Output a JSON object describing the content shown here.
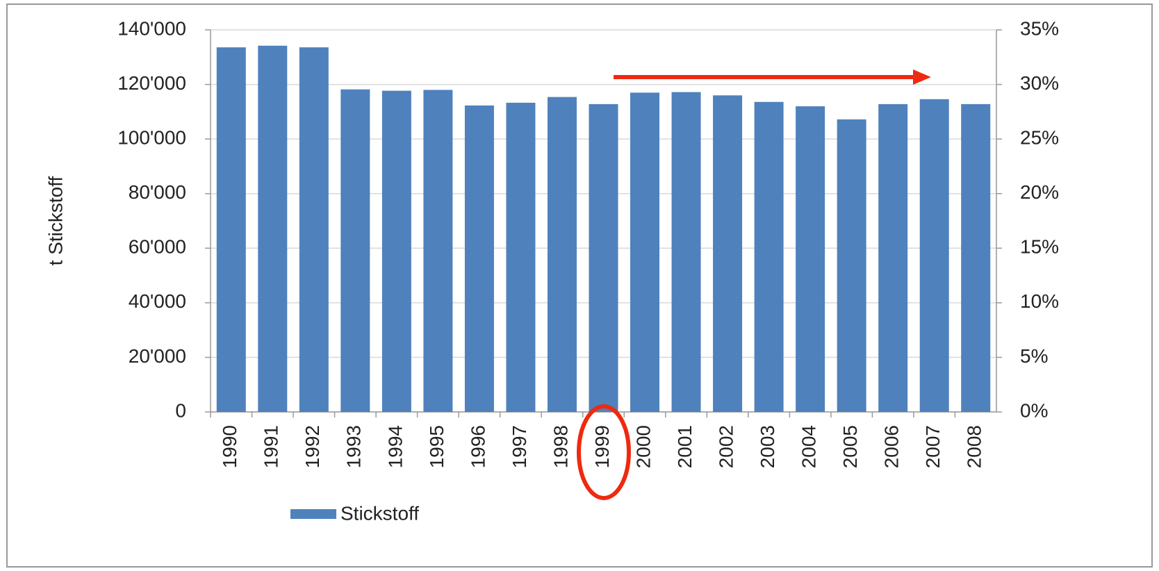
{
  "chart_data": {
    "type": "bar",
    "ylabel": "t Stickstoff",
    "categories": [
      "1990",
      "1991",
      "1992",
      "1993",
      "1994",
      "1995",
      "1996",
      "1997",
      "1998",
      "1999",
      "2000",
      "2001",
      "2002",
      "2003",
      "2004",
      "2005",
      "2006",
      "2007",
      "2008"
    ],
    "series": [
      {
        "name": "Stickstoff",
        "color": "#4f81bd",
        "values": [
          133600,
          134200,
          133600,
          118200,
          117700,
          118000,
          112300,
          113300,
          115400,
          112800,
          117000,
          117200,
          116000,
          113600,
          112000,
          107200,
          112800,
          114600,
          112800
        ]
      }
    ],
    "ylim": [
      0,
      140000
    ],
    "yticks": [
      0,
      {
        "value": 20000,
        "label": "20'000"
      },
      {
        "value": 40000,
        "label": "40'000"
      },
      {
        "value": 60000,
        "label": "60'000"
      },
      {
        "value": 80000,
        "label": "80'000"
      },
      {
        "value": 100000,
        "label": "100'000"
      },
      {
        "value": 120000,
        "label": "120'000"
      },
      {
        "value": 140000,
        "label": "140'000"
      }
    ],
    "y2lim": [
      0,
      35
    ],
    "y2ticks": [
      {
        "value": 0,
        "label": "0%"
      },
      {
        "value": 5,
        "label": "5%"
      },
      {
        "value": 10,
        "label": "10%"
      },
      {
        "value": 15,
        "label": "15%"
      },
      {
        "value": 20,
        "label": "20%"
      },
      {
        "value": 25,
        "label": "25%"
      },
      {
        "value": 30,
        "label": "30%"
      },
      {
        "value": 35,
        "label": "35%"
      }
    ],
    "grid": true,
    "legend": "bottom-left"
  }
}
